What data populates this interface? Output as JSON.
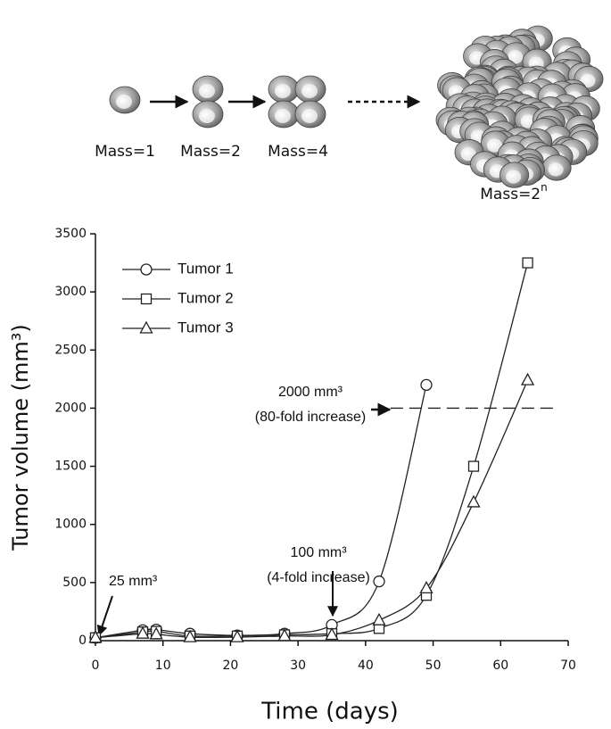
{
  "diagram": {
    "labels": [
      "Mass=1",
      "Mass=2",
      "Mass=4"
    ],
    "final_label": "Mass=2",
    "final_exponent": "n"
  },
  "chart_data": {
    "type": "line",
    "x_label": "Time (days)",
    "y_label": "Tumor volume (mm³)",
    "x": [
      0,
      7,
      9,
      14,
      21,
      28,
      35,
      42,
      49,
      56,
      64
    ],
    "series": [
      {
        "name": "Tumor 1",
        "marker": "circle",
        "color": "#222222",
        "values": [
          25,
          90,
          95,
          60,
          45,
          60,
          135,
          510,
          2200,
          null,
          null
        ]
      },
      {
        "name": "Tumor 2",
        "marker": "square",
        "color": "#222222",
        "values": [
          25,
          75,
          80,
          40,
          40,
          50,
          60,
          105,
          390,
          1500,
          3250
        ]
      },
      {
        "name": "Tumor 3",
        "marker": "triangle",
        "color": "#222222",
        "values": [
          25,
          60,
          55,
          30,
          30,
          40,
          50,
          175,
          450,
          1190,
          2240
        ]
      }
    ],
    "xlim": [
      0,
      70
    ],
    "xticks": [
      0,
      10,
      20,
      30,
      40,
      50,
      60,
      70
    ],
    "ylim": [
      0,
      3500
    ],
    "yticks": [
      0,
      500,
      1000,
      1500,
      2000,
      2500,
      3000,
      3500
    ],
    "legend": "upper left",
    "grid": false,
    "reference_line": 2000,
    "annotations": [
      "25 mm³",
      "100 mm³",
      "(4-fold increase)",
      "2000 mm³",
      "(80-fold increase)"
    ]
  }
}
